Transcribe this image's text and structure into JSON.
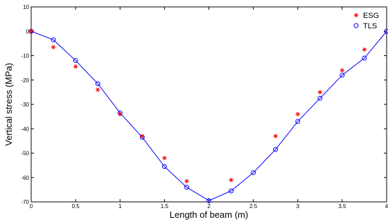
{
  "chart_data": {
    "type": "line",
    "xlabel": "Length of beam (m)",
    "ylabel": "Vertical stress (MPa)",
    "xlim": [
      0,
      4
    ],
    "ylim": [
      -70,
      10
    ],
    "x_ticks": [
      "0",
      "0.5",
      "1",
      "1.5",
      "2",
      "2.5",
      "3",
      "3.5",
      "4"
    ],
    "y_ticks": [
      "10",
      "0",
      "-10",
      "-20",
      "-30",
      "-40",
      "-50",
      "-60",
      "-70"
    ],
    "grid": false,
    "legend_position": "top-right",
    "series": [
      {
        "name": "ESG",
        "style": "asterisk-markers",
        "color": "#ff0000",
        "x": [
          0,
          0.25,
          0.5,
          0.75,
          1.0,
          1.25,
          1.5,
          1.75,
          2.25,
          2.75,
          3.0,
          3.25,
          3.5,
          3.75
        ],
        "y": [
          0,
          -6.5,
          -14.5,
          -24,
          -34,
          -43,
          -52,
          -61.5,
          -61,
          -43,
          -34,
          -25,
          -16,
          -7.5
        ]
      },
      {
        "name": "TLS",
        "style": "circle-markers-with-line",
        "color": "#0000ff",
        "x": [
          0,
          0.25,
          0.5,
          0.75,
          1.0,
          1.25,
          1.5,
          1.75,
          2.0,
          2.25,
          2.5,
          2.75,
          3.0,
          3.25,
          3.5,
          3.75,
          4.0
        ],
        "y": [
          0,
          -3.5,
          -12,
          -21.5,
          -33.5,
          -43.5,
          -55.5,
          -64,
          -69.5,
          -65.5,
          -58,
          -48.5,
          -37,
          -27.5,
          -18,
          -11,
          0
        ]
      }
    ]
  }
}
